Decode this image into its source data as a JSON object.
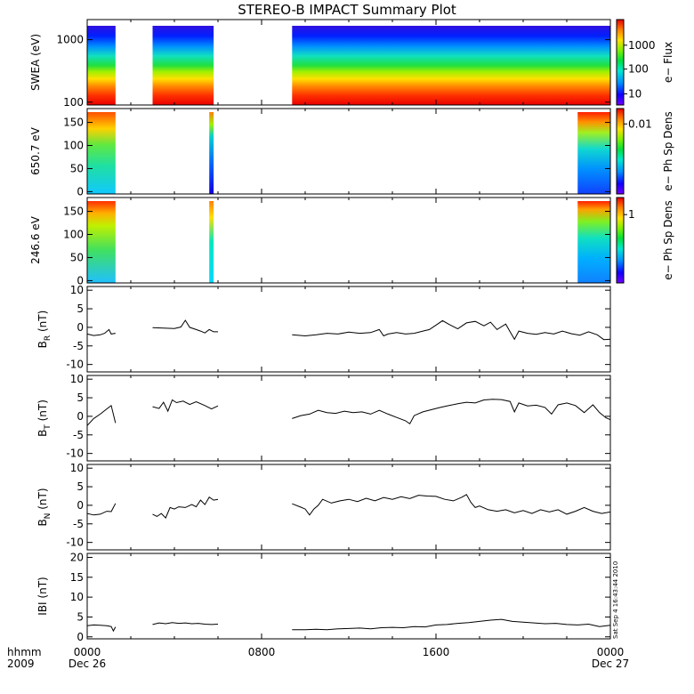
{
  "title": "STEREO-B IMPACT Summary Plot",
  "footer": {
    "time_label": "hhmm",
    "year_label": "2009",
    "stamp": "Sat Sep 4 16:43:44 2010"
  },
  "x_axis": {
    "range_hours": [
      0,
      24
    ],
    "ticks": [
      {
        "h": 0,
        "label": "0000",
        "sub": "Dec 26"
      },
      {
        "h": 8,
        "label": "0800",
        "sub": ""
      },
      {
        "h": 16,
        "label": "1600",
        "sub": ""
      },
      {
        "h": 24,
        "label": "0000",
        "sub": "Dec 27"
      }
    ]
  },
  "chart_data": [
    {
      "type": "heatmap",
      "name": "swea",
      "ylabel": "SWEA (eV)",
      "yscale": "log",
      "ylim": [
        90,
        2100
      ],
      "yticks": [
        {
          "v": 100,
          "label": "100"
        },
        {
          "v": 1000,
          "label": "1000"
        }
      ],
      "colorbar_label": "e− Flux",
      "colorbar_ticks": [
        {
          "f": 0.13,
          "label": "10"
        },
        {
          "f": 0.42,
          "label": "100"
        },
        {
          "f": 0.7,
          "label": "1000"
        }
      ],
      "coverage_hours": [
        [
          0.0,
          1.3
        ],
        [
          3.0,
          5.8
        ],
        [
          9.4,
          24.0
        ]
      ]
    },
    {
      "type": "heatmap",
      "name": "pad650",
      "ylabel": "650.7 eV",
      "ylim": [
        -5,
        180
      ],
      "yticks": [
        {
          "v": 0,
          "label": "0"
        },
        {
          "v": 50,
          "label": "50"
        },
        {
          "v": 100,
          "label": "100"
        },
        {
          "v": 150,
          "label": "150"
        }
      ],
      "colorbar_label": "e− Ph Sp Dens",
      "colorbar_ticks": [
        {
          "f": 0.82,
          "label": "0.01"
        }
      ],
      "coverage_hours": [
        [
          0.0,
          1.3
        ],
        [
          5.6,
          5.8
        ],
        [
          22.5,
          24.0
        ]
      ]
    },
    {
      "type": "heatmap",
      "name": "pad246",
      "ylabel": "246.6 eV",
      "ylim": [
        -5,
        180
      ],
      "yticks": [
        {
          "v": 0,
          "label": "0"
        },
        {
          "v": 50,
          "label": "50"
        },
        {
          "v": 100,
          "label": "100"
        },
        {
          "v": 150,
          "label": "150"
        }
      ],
      "colorbar_label": "e− Ph Sp Dens",
      "colorbar_ticks": [
        {
          "f": 0.8,
          "label": "1"
        }
      ],
      "coverage_hours": [
        [
          0.0,
          1.3
        ],
        [
          5.6,
          5.8
        ],
        [
          22.5,
          24.0
        ]
      ]
    },
    {
      "type": "line",
      "name": "br",
      "ylabel_main": "B",
      "ylabel_sub": "R",
      "ylabel_unit": " (nT)",
      "ylim": [
        -12,
        11
      ],
      "yticks": [
        -10,
        -5,
        0,
        5,
        10
      ],
      "segments": [
        [
          [
            0.0,
            -1.8
          ],
          [
            0.3,
            -2.2
          ],
          [
            0.6,
            -2.0
          ],
          [
            0.8,
            -1.6
          ],
          [
            1.0,
            -0.6
          ],
          [
            1.1,
            -1.8
          ],
          [
            1.3,
            -1.6
          ]
        ],
        [
          [
            3.0,
            -0.1
          ],
          [
            3.5,
            -0.2
          ],
          [
            4.0,
            -0.3
          ],
          [
            4.3,
            0.1
          ],
          [
            4.5,
            1.9
          ],
          [
            4.7,
            0.0
          ],
          [
            5.0,
            -0.6
          ],
          [
            5.2,
            -1.0
          ],
          [
            5.4,
            -1.5
          ],
          [
            5.6,
            -0.6
          ],
          [
            5.8,
            -1.2
          ],
          [
            6.0,
            -1.2
          ]
        ],
        [
          [
            9.4,
            -2.0
          ],
          [
            10.0,
            -2.3
          ],
          [
            10.5,
            -2.0
          ],
          [
            11.0,
            -1.6
          ],
          [
            11.5,
            -1.8
          ],
          [
            12.0,
            -1.3
          ],
          [
            12.5,
            -1.6
          ],
          [
            13.0,
            -1.4
          ],
          [
            13.4,
            -0.6
          ],
          [
            13.6,
            -2.3
          ],
          [
            13.8,
            -1.8
          ],
          [
            14.2,
            -1.4
          ],
          [
            14.6,
            -1.8
          ],
          [
            15.0,
            -1.6
          ],
          [
            15.4,
            -1.0
          ],
          [
            15.7,
            -0.6
          ],
          [
            16.0,
            0.6
          ],
          [
            16.3,
            1.8
          ],
          [
            16.6,
            0.8
          ],
          [
            17.0,
            -0.4
          ],
          [
            17.4,
            1.2
          ],
          [
            17.8,
            1.6
          ],
          [
            18.2,
            0.4
          ],
          [
            18.5,
            1.4
          ],
          [
            18.8,
            -0.6
          ],
          [
            19.2,
            0.9
          ],
          [
            19.4,
            -1.2
          ],
          [
            19.6,
            -3.2
          ],
          [
            19.8,
            -1.0
          ],
          [
            20.2,
            -1.6
          ],
          [
            20.6,
            -1.9
          ],
          [
            21.0,
            -1.4
          ],
          [
            21.4,
            -1.8
          ],
          [
            21.8,
            -1.0
          ],
          [
            22.2,
            -1.7
          ],
          [
            22.6,
            -2.1
          ],
          [
            23.0,
            -1.2
          ],
          [
            23.4,
            -2.0
          ],
          [
            23.7,
            -3.3
          ],
          [
            24.0,
            -3.2
          ]
        ]
      ]
    },
    {
      "type": "line",
      "name": "bt",
      "ylabel_main": "B",
      "ylabel_sub": "T",
      "ylabel_unit": " (nT)",
      "ylim": [
        -12,
        11
      ],
      "yticks": [
        -10,
        -5,
        0,
        5,
        10
      ],
      "segments": [
        [
          [
            0.0,
            -2.5
          ],
          [
            0.3,
            -0.6
          ],
          [
            0.6,
            0.6
          ],
          [
            0.9,
            2.0
          ],
          [
            1.1,
            2.9
          ],
          [
            1.3,
            -1.8
          ]
        ],
        [
          [
            3.0,
            2.6
          ],
          [
            3.3,
            2.1
          ],
          [
            3.5,
            3.8
          ],
          [
            3.7,
            1.4
          ],
          [
            3.9,
            4.4
          ],
          [
            4.1,
            3.7
          ],
          [
            4.4,
            4.1
          ],
          [
            4.7,
            3.2
          ],
          [
            5.0,
            3.9
          ],
          [
            5.4,
            2.9
          ],
          [
            5.7,
            2.0
          ],
          [
            6.0,
            2.8
          ]
        ],
        [
          [
            9.4,
            -0.6
          ],
          [
            9.8,
            0.2
          ],
          [
            10.2,
            0.6
          ],
          [
            10.6,
            1.6
          ],
          [
            11.0,
            1.0
          ],
          [
            11.4,
            0.8
          ],
          [
            11.8,
            1.4
          ],
          [
            12.2,
            1.0
          ],
          [
            12.6,
            1.2
          ],
          [
            13.0,
            0.6
          ],
          [
            13.4,
            1.6
          ],
          [
            13.8,
            0.6
          ],
          [
            14.2,
            -0.3
          ],
          [
            14.6,
            -1.2
          ],
          [
            14.8,
            -2.0
          ],
          [
            15.0,
            0.2
          ],
          [
            15.4,
            1.2
          ],
          [
            15.8,
            1.8
          ],
          [
            16.2,
            2.4
          ],
          [
            16.6,
            2.9
          ],
          [
            17.0,
            3.4
          ],
          [
            17.4,
            3.8
          ],
          [
            17.8,
            3.6
          ],
          [
            18.2,
            4.4
          ],
          [
            18.6,
            4.6
          ],
          [
            19.0,
            4.5
          ],
          [
            19.4,
            4.0
          ],
          [
            19.6,
            1.2
          ],
          [
            19.8,
            3.6
          ],
          [
            20.2,
            2.8
          ],
          [
            20.6,
            3.0
          ],
          [
            21.0,
            2.4
          ],
          [
            21.3,
            0.6
          ],
          [
            21.6,
            3.1
          ],
          [
            22.0,
            3.6
          ],
          [
            22.4,
            2.9
          ],
          [
            22.8,
            1.0
          ],
          [
            23.2,
            3.1
          ],
          [
            23.5,
            1.0
          ],
          [
            23.8,
            -0.4
          ],
          [
            24.0,
            -0.9
          ]
        ]
      ]
    },
    {
      "type": "line",
      "name": "bn",
      "ylabel_main": "B",
      "ylabel_sub": "N",
      "ylabel_unit": " (nT)",
      "ylim": [
        -12,
        11
      ],
      "yticks": [
        -10,
        -5,
        0,
        5,
        10
      ],
      "segments": [
        [
          [
            0.0,
            -2.2
          ],
          [
            0.3,
            -2.6
          ],
          [
            0.6,
            -2.4
          ],
          [
            0.9,
            -1.6
          ],
          [
            1.1,
            -1.7
          ],
          [
            1.3,
            0.5
          ]
        ],
        [
          [
            3.0,
            -2.4
          ],
          [
            3.2,
            -3.0
          ],
          [
            3.4,
            -2.2
          ],
          [
            3.6,
            -3.4
          ],
          [
            3.8,
            -0.6
          ],
          [
            4.0,
            -1.0
          ],
          [
            4.2,
            -0.4
          ],
          [
            4.5,
            -0.6
          ],
          [
            4.8,
            0.2
          ],
          [
            5.0,
            -0.4
          ],
          [
            5.2,
            1.4
          ],
          [
            5.4,
            0.2
          ],
          [
            5.6,
            2.2
          ],
          [
            5.8,
            1.4
          ],
          [
            6.0,
            1.6
          ]
        ],
        [
          [
            9.4,
            0.4
          ],
          [
            9.8,
            -0.5
          ],
          [
            10.0,
            -1.0
          ],
          [
            10.2,
            -2.6
          ],
          [
            10.4,
            -1.0
          ],
          [
            10.6,
            0.0
          ],
          [
            10.8,
            1.6
          ],
          [
            11.2,
            0.6
          ],
          [
            11.6,
            1.2
          ],
          [
            12.0,
            1.6
          ],
          [
            12.4,
            1.0
          ],
          [
            12.8,
            1.9
          ],
          [
            13.2,
            1.2
          ],
          [
            13.6,
            2.1
          ],
          [
            14.0,
            1.6
          ],
          [
            14.4,
            2.3
          ],
          [
            14.8,
            1.8
          ],
          [
            15.2,
            2.7
          ],
          [
            15.6,
            2.5
          ],
          [
            16.0,
            2.4
          ],
          [
            16.4,
            1.6
          ],
          [
            16.8,
            1.2
          ],
          [
            17.2,
            2.2
          ],
          [
            17.4,
            2.9
          ],
          [
            17.6,
            0.8
          ],
          [
            17.8,
            -0.6
          ],
          [
            18.0,
            -0.2
          ],
          [
            18.4,
            -1.2
          ],
          [
            18.8,
            -1.6
          ],
          [
            19.2,
            -1.2
          ],
          [
            19.6,
            -2.0
          ],
          [
            20.0,
            -1.4
          ],
          [
            20.4,
            -2.2
          ],
          [
            20.8,
            -1.2
          ],
          [
            21.2,
            -1.8
          ],
          [
            21.6,
            -1.2
          ],
          [
            22.0,
            -2.4
          ],
          [
            22.4,
            -1.6
          ],
          [
            22.8,
            -0.6
          ],
          [
            23.2,
            -1.6
          ],
          [
            23.6,
            -2.2
          ],
          [
            24.0,
            -1.8
          ]
        ]
      ]
    },
    {
      "type": "line",
      "name": "babs",
      "ylabel_main": "IBI",
      "ylabel_sub": "",
      "ylabel_unit": " (nT)",
      "ylim": [
        -0.5,
        21
      ],
      "yticks": [
        0,
        5,
        10,
        15,
        20
      ],
      "segments": [
        [
          [
            0.0,
            2.8
          ],
          [
            0.3,
            3.0
          ],
          [
            0.6,
            2.9
          ],
          [
            0.9,
            2.8
          ],
          [
            1.1,
            2.6
          ],
          [
            1.2,
            1.5
          ],
          [
            1.3,
            2.5
          ]
        ],
        [
          [
            3.0,
            3.1
          ],
          [
            3.3,
            3.5
          ],
          [
            3.6,
            3.3
          ],
          [
            3.9,
            3.6
          ],
          [
            4.2,
            3.4
          ],
          [
            4.5,
            3.5
          ],
          [
            4.8,
            3.3
          ],
          [
            5.1,
            3.4
          ],
          [
            5.4,
            3.2
          ],
          [
            5.7,
            3.1
          ],
          [
            6.0,
            3.2
          ]
        ],
        [
          [
            9.4,
            1.8
          ],
          [
            10.0,
            1.8
          ],
          [
            10.5,
            1.9
          ],
          [
            11.0,
            1.8
          ],
          [
            11.5,
            2.0
          ],
          [
            12.0,
            2.1
          ],
          [
            12.5,
            2.2
          ],
          [
            13.0,
            2.0
          ],
          [
            13.5,
            2.3
          ],
          [
            14.0,
            2.4
          ],
          [
            14.5,
            2.3
          ],
          [
            15.0,
            2.6
          ],
          [
            15.5,
            2.5
          ],
          [
            16.0,
            3.0
          ],
          [
            16.5,
            3.1
          ],
          [
            17.0,
            3.4
          ],
          [
            17.5,
            3.6
          ],
          [
            18.0,
            3.9
          ],
          [
            18.5,
            4.2
          ],
          [
            19.0,
            4.4
          ],
          [
            19.5,
            3.9
          ],
          [
            20.0,
            3.7
          ],
          [
            20.5,
            3.5
          ],
          [
            21.0,
            3.3
          ],
          [
            21.5,
            3.4
          ],
          [
            22.0,
            3.1
          ],
          [
            22.5,
            3.0
          ],
          [
            23.0,
            3.2
          ],
          [
            23.5,
            2.6
          ],
          [
            24.0,
            2.9
          ]
        ]
      ]
    }
  ]
}
